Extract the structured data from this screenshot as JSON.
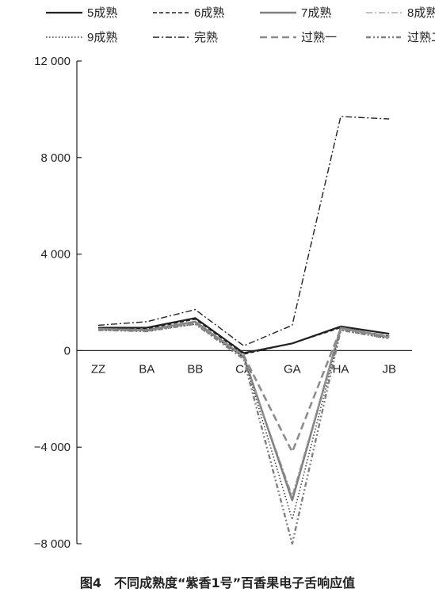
{
  "chart_data": {
    "type": "line",
    "title": "",
    "xlabel": "",
    "ylabel": "",
    "categories": [
      "ZZ",
      "BA",
      "BB",
      "CA",
      "GA",
      "HA",
      "JB"
    ],
    "yticks": [
      12000,
      8000,
      4000,
      0,
      -4000,
      -8000
    ],
    "ytick_labels": [
      "12 000",
      "8 000",
      "4 000",
      "0",
      "−4 000",
      "−8 000"
    ],
    "ylim": [
      -8000,
      12000
    ],
    "grid": false,
    "legend_position": "top",
    "series": [
      {
        "name": "5成熟",
        "values": [
          950,
          950,
          1350,
          -100,
          300,
          1000,
          700
        ],
        "color": "#222222",
        "dash": "",
        "width": 2.2
      },
      {
        "name": "6成熟",
        "values": [
          900,
          900,
          1300,
          -150,
          300,
          950,
          600
        ],
        "color": "#222222",
        "dash": "5,3",
        "width": 1.4
      },
      {
        "name": "7成熟",
        "values": [
          900,
          850,
          1200,
          -250,
          -6200,
          950,
          550
        ],
        "color": "#808080",
        "dash": "",
        "width": 2.6
      },
      {
        "name": "8成熟",
        "values": [
          880,
          820,
          1150,
          -300,
          -6000,
          900,
          550
        ],
        "color": "#999999",
        "dash": "8,3,2,3",
        "width": 1.3
      },
      {
        "name": "9成熟",
        "values": [
          860,
          800,
          1100,
          -280,
          -7000,
          850,
          500
        ],
        "color": "#333333",
        "dash": "1.5,2.5",
        "width": 1.4
      },
      {
        "name": "完熟",
        "values": [
          1050,
          1200,
          1700,
          200,
          1050,
          9700,
          9600
        ],
        "color": "#222222",
        "dash": "8,3,2,3",
        "width": 1.4
      },
      {
        "name": "过熟一",
        "values": [
          870,
          830,
          1150,
          -200,
          -4200,
          900,
          600
        ],
        "color": "#8c8c8c",
        "dash": "9,5",
        "width": 2.6
      },
      {
        "name": "过熟二",
        "values": [
          850,
          800,
          1100,
          -350,
          -8000,
          850,
          500
        ],
        "color": "#808080",
        "dash": "6,3,2,3,2,3",
        "width": 2.4
      }
    ]
  },
  "caption": "图4　不同成熟度“紫香1号”百香果电子舌响应值"
}
